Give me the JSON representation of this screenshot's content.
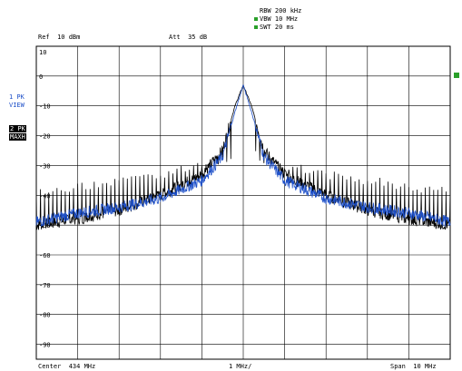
{
  "header": {
    "rbw": "RBW 200 kHz",
    "vbw": "VBW 10 MHz",
    "swt": "SWT 20 ms",
    "ref": "Ref  10 dBm",
    "att": "Att  35 dB"
  },
  "left_panel": {
    "trace1_label": "1 PK",
    "trace1_mode": "VIEW",
    "trace2_label": "2 PK",
    "trace2_mode": "MAXH"
  },
  "footer": {
    "center": "Center  434 MHz",
    "div": "1 MHz/",
    "span": "Span  10 MHz"
  },
  "colors": {
    "grid": "#000000",
    "trace_view": "#1e50c8",
    "trace_maxh": "#000000",
    "marker_green": "#2aa02a"
  },
  "chart_data": {
    "type": "line",
    "title": "",
    "xlabel": "",
    "ylabel": "",
    "y_ticks": [
      10,
      0,
      -10,
      -20,
      -30,
      -40,
      -50,
      -60,
      -70,
      -80,
      -90
    ],
    "y_tick_labels": [
      "10",
      "0",
      "-10",
      "-20",
      "-30",
      "-40",
      "-50",
      "-60",
      "-70",
      "-80",
      "-90"
    ],
    "ylim": [
      -95,
      10
    ],
    "xlim_mhz": [
      429,
      439
    ],
    "center_mhz": 434,
    "span_mhz": 10,
    "grid": true,
    "series": [
      {
        "trace": "1 PK VIEW",
        "color": "#1e50c8",
        "x_mhz": [
          429.0,
          430.0,
          431.0,
          432.0,
          433.0,
          433.5,
          433.8,
          434.0,
          434.2,
          434.5,
          435.0,
          436.0,
          437.0,
          438.0,
          439.0
        ],
        "y_dbm": [
          -49,
          -46,
          -44,
          -41,
          -35,
          -27,
          -12,
          -3,
          -12,
          -27,
          -35,
          -41,
          -44,
          -46,
          -49
        ]
      },
      {
        "trace": "2 PK MAXH",
        "color": "#000000",
        "x_mhz": [
          429.0,
          430.0,
          431.0,
          432.0,
          433.0,
          433.5,
          433.8,
          434.0,
          434.2,
          434.5,
          435.0,
          436.0,
          437.0,
          438.0,
          439.0
        ],
        "y_dbm": [
          -50,
          -48,
          -45,
          -40,
          -33,
          -25,
          -10,
          -3,
          -10,
          -25,
          -33,
          -40,
          -45,
          -48,
          -50
        ],
        "spur_peak_envelope_dbm": [
          -39,
          -37,
          -35,
          -33,
          -30,
          -28,
          -26,
          -3,
          -26,
          -28,
          -30,
          -33,
          -35,
          -37,
          -39
        ]
      }
    ]
  }
}
